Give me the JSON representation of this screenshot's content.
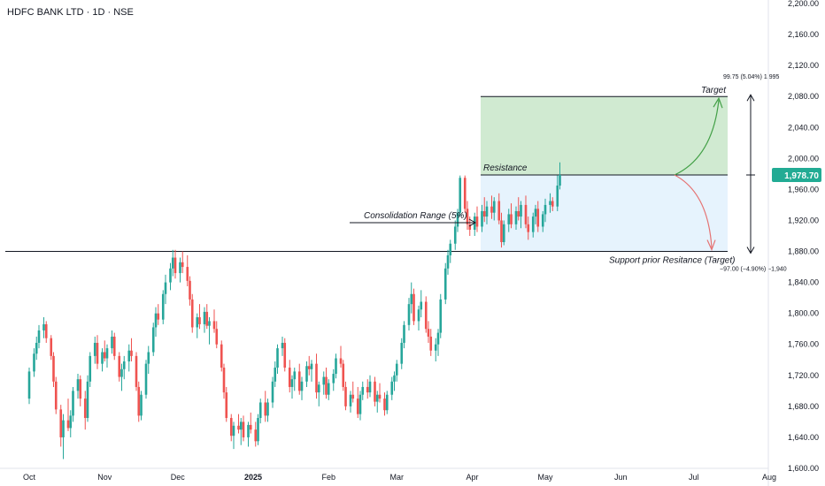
{
  "header": {
    "title": "HDFC BANK LTD · 1D · NSE"
  },
  "colors": {
    "up": "#26a69a",
    "down": "#ef5350",
    "target_zone": "#c8e6c9",
    "range_zone": "#e3f2fd",
    "price_tag_bg": "#22ab94",
    "line": "#131722",
    "axis_text": "#131722",
    "arrow_up": "#43a047",
    "arrow_down": "#e57373"
  },
  "annotations": {
    "target": "Target",
    "resistance": "Resistance",
    "consolidation": "Consolidation Range (5%)",
    "support": "Support prior Resitance (Target)",
    "measure_up": "99.75 (5.04%) 1,995",
    "measure_down": "−97.00 (−4.90%) −1,940"
  },
  "price_tag": "1,978.70",
  "chart_data": {
    "type": "candlestick",
    "title": "HDFC BANK LTD · 1D · NSE",
    "y_ticks": [
      "2,200.00",
      "2,160.00",
      "2,120.00",
      "2,080.00",
      "2,040.00",
      "2,000.00",
      "1,960.00",
      "1,920.00",
      "1,880.00",
      "1,840.00",
      "1,800.00",
      "1,760.00",
      "1,720.00",
      "1,680.00",
      "1,640.00",
      "1,600.00"
    ],
    "ylim": [
      1600,
      2200
    ],
    "x_ticks": [
      {
        "label": "Oct",
        "day": 1
      },
      {
        "label": "Nov",
        "day": 32
      },
      {
        "label": "Dec",
        "day": 62
      },
      {
        "label": "2025",
        "day": 93
      },
      {
        "label": "Feb",
        "day": 124
      },
      {
        "label": "Mar",
        "day": 152
      },
      {
        "label": "Apr",
        "day": 183
      },
      {
        "label": "May",
        "day": 213
      },
      {
        "label": "Jun",
        "day": 244
      },
      {
        "label": "Jul",
        "day": 274
      },
      {
        "label": "Aug",
        "day": 305
      }
    ],
    "levels": {
      "target": 2080,
      "resistance": 1978.7,
      "support": 1880,
      "last_price": 1978.7
    },
    "series": [
      {
        "name": "Price",
        "ohlc": [
          [
            1,
            1690,
            1730,
            1683,
            1725
          ],
          [
            3,
            1725,
            1755,
            1718,
            1748
          ],
          [
            4,
            1748,
            1770,
            1740,
            1762
          ],
          [
            5,
            1762,
            1785,
            1755,
            1778
          ],
          [
            7,
            1778,
            1795,
            1768,
            1786
          ],
          [
            8,
            1786,
            1790,
            1762,
            1768
          ],
          [
            10,
            1768,
            1772,
            1740,
            1745
          ],
          [
            11,
            1745,
            1750,
            1705,
            1712
          ],
          [
            12,
            1712,
            1718,
            1670,
            1676
          ],
          [
            14,
            1676,
            1682,
            1628,
            1640
          ],
          [
            15,
            1640,
            1670,
            1612,
            1662
          ],
          [
            17,
            1662,
            1690,
            1648,
            1652
          ],
          [
            18,
            1652,
            1675,
            1640,
            1668
          ],
          [
            19,
            1668,
            1705,
            1660,
            1700
          ],
          [
            21,
            1700,
            1722,
            1690,
            1715
          ],
          [
            22,
            1715,
            1720,
            1680,
            1690
          ],
          [
            24,
            1690,
            1700,
            1650,
            1665
          ],
          [
            25,
            1665,
            1720,
            1660,
            1712
          ],
          [
            26,
            1712,
            1750,
            1705,
            1745
          ],
          [
            28,
            1745,
            1770,
            1735,
            1762
          ],
          [
            29,
            1762,
            1772,
            1728,
            1735
          ],
          [
            31,
            1735,
            1755,
            1725,
            1750
          ],
          [
            32,
            1750,
            1765,
            1738,
            1742
          ],
          [
            33,
            1742,
            1760,
            1730,
            1755
          ],
          [
            35,
            1755,
            1778,
            1748,
            1770
          ],
          [
            36,
            1770,
            1775,
            1740,
            1745
          ],
          [
            38,
            1745,
            1750,
            1712,
            1718
          ],
          [
            39,
            1718,
            1735,
            1700,
            1728
          ],
          [
            40,
            1728,
            1745,
            1715,
            1738
          ],
          [
            42,
            1738,
            1760,
            1725,
            1752
          ],
          [
            43,
            1752,
            1768,
            1738,
            1745
          ],
          [
            45,
            1745,
            1750,
            1700,
            1705
          ],
          [
            46,
            1705,
            1712,
            1660,
            1668
          ],
          [
            47,
            1668,
            1700,
            1662,
            1695
          ],
          [
            49,
            1695,
            1740,
            1690,
            1735
          ],
          [
            50,
            1735,
            1758,
            1722,
            1750
          ],
          [
            52,
            1750,
            1788,
            1745,
            1782
          ],
          [
            53,
            1782,
            1808,
            1770,
            1800
          ],
          [
            54,
            1800,
            1812,
            1785,
            1792
          ],
          [
            56,
            1792,
            1830,
            1786,
            1825
          ],
          [
            57,
            1825,
            1850,
            1812,
            1840
          ],
          [
            59,
            1840,
            1865,
            1830,
            1858
          ],
          [
            60,
            1858,
            1882,
            1848,
            1872
          ],
          [
            61,
            1872,
            1882,
            1845,
            1852
          ],
          [
            63,
            1852,
            1872,
            1840,
            1866
          ],
          [
            64,
            1866,
            1880,
            1852,
            1860
          ],
          [
            66,
            1860,
            1875,
            1835,
            1842
          ],
          [
            67,
            1842,
            1848,
            1810,
            1818
          ],
          [
            68,
            1818,
            1825,
            1775,
            1782
          ],
          [
            70,
            1782,
            1800,
            1768,
            1795
          ],
          [
            71,
            1795,
            1812,
            1780,
            1786
          ],
          [
            73,
            1786,
            1808,
            1775,
            1802
          ],
          [
            74,
            1802,
            1812,
            1780,
            1784
          ],
          [
            75,
            1784,
            1795,
            1760,
            1790
          ],
          [
            77,
            1790,
            1805,
            1775,
            1780
          ],
          [
            78,
            1780,
            1790,
            1755,
            1760
          ],
          [
            80,
            1760,
            1765,
            1725,
            1730
          ],
          [
            81,
            1730,
            1735,
            1690,
            1698
          ],
          [
            82,
            1698,
            1705,
            1660,
            1665
          ],
          [
            84,
            1665,
            1670,
            1635,
            1642
          ],
          [
            85,
            1642,
            1660,
            1625,
            1655
          ],
          [
            87,
            1655,
            1670,
            1645,
            1650
          ],
          [
            88,
            1650,
            1665,
            1630,
            1660
          ],
          [
            89,
            1660,
            1668,
            1635,
            1640
          ],
          [
            91,
            1640,
            1660,
            1628,
            1656
          ],
          [
            92,
            1656,
            1672,
            1645,
            1650
          ],
          [
            94,
            1650,
            1660,
            1628,
            1635
          ],
          [
            95,
            1635,
            1670,
            1630,
            1665
          ],
          [
            96,
            1665,
            1690,
            1658,
            1685
          ],
          [
            98,
            1685,
            1700,
            1660,
            1668
          ],
          [
            99,
            1668,
            1690,
            1660,
            1685
          ],
          [
            101,
            1685,
            1718,
            1678,
            1712
          ],
          [
            102,
            1712,
            1738,
            1705,
            1730
          ],
          [
            103,
            1730,
            1760,
            1722,
            1755
          ],
          [
            105,
            1755,
            1770,
            1745,
            1762
          ],
          [
            106,
            1762,
            1768,
            1725,
            1730
          ],
          [
            108,
            1730,
            1740,
            1698,
            1705
          ],
          [
            109,
            1705,
            1720,
            1690,
            1715
          ],
          [
            110,
            1715,
            1730,
            1700,
            1725
          ],
          [
            112,
            1725,
            1735,
            1695,
            1700
          ],
          [
            113,
            1700,
            1718,
            1688,
            1712
          ],
          [
            115,
            1712,
            1738,
            1705,
            1732
          ],
          [
            116,
            1732,
            1745,
            1720,
            1728
          ],
          [
            117,
            1728,
            1740,
            1712,
            1735
          ],
          [
            119,
            1735,
            1748,
            1690,
            1698
          ],
          [
            120,
            1698,
            1712,
            1680,
            1708
          ],
          [
            122,
            1708,
            1725,
            1695,
            1718
          ],
          [
            123,
            1718,
            1730,
            1690,
            1695
          ],
          [
            124,
            1695,
            1715,
            1688,
            1710
          ],
          [
            126,
            1710,
            1728,
            1700,
            1722
          ],
          [
            127,
            1722,
            1748,
            1716,
            1742
          ],
          [
            129,
            1742,
            1758,
            1730,
            1735
          ],
          [
            130,
            1735,
            1740,
            1700,
            1705
          ],
          [
            131,
            1705,
            1712,
            1675,
            1680
          ],
          [
            133,
            1680,
            1700,
            1672,
            1695
          ],
          [
            134,
            1695,
            1712,
            1685,
            1690
          ],
          [
            136,
            1690,
            1705,
            1665,
            1670
          ],
          [
            137,
            1670,
            1700,
            1662,
            1695
          ],
          [
            138,
            1695,
            1712,
            1688,
            1705
          ],
          [
            140,
            1705,
            1715,
            1690,
            1698
          ],
          [
            141,
            1698,
            1720,
            1692,
            1712
          ],
          [
            143,
            1712,
            1718,
            1680,
            1686
          ],
          [
            144,
            1686,
            1700,
            1672,
            1695
          ],
          [
            145,
            1695,
            1710,
            1685,
            1690
          ],
          [
            147,
            1690,
            1698,
            1668,
            1675
          ],
          [
            148,
            1675,
            1700,
            1670,
            1695
          ],
          [
            150,
            1695,
            1718,
            1688,
            1712
          ],
          [
            151,
            1712,
            1725,
            1700,
            1720
          ],
          [
            152,
            1720,
            1740,
            1712,
            1735
          ],
          [
            154,
            1735,
            1768,
            1728,
            1762
          ],
          [
            155,
            1762,
            1790,
            1755,
            1785
          ],
          [
            157,
            1785,
            1820,
            1778,
            1812
          ],
          [
            158,
            1812,
            1840,
            1800,
            1825
          ],
          [
            159,
            1825,
            1832,
            1785,
            1790
          ],
          [
            161,
            1790,
            1810,
            1778,
            1805
          ],
          [
            162,
            1805,
            1830,
            1795,
            1815
          ],
          [
            164,
            1815,
            1822,
            1775,
            1780
          ],
          [
            165,
            1780,
            1790,
            1762,
            1770
          ],
          [
            166,
            1770,
            1780,
            1745,
            1752
          ],
          [
            168,
            1752,
            1768,
            1738,
            1760
          ],
          [
            169,
            1760,
            1780,
            1745,
            1775
          ],
          [
            170,
            1775,
            1825,
            1768,
            1818
          ],
          [
            172,
            1818,
            1865,
            1812,
            1858
          ],
          [
            173,
            1858,
            1882,
            1850,
            1875
          ],
          [
            174,
            1875,
            1895,
            1865,
            1890
          ],
          [
            176,
            1890,
            1920,
            1882,
            1912
          ],
          [
            177,
            1912,
            1935,
            1905,
            1930
          ],
          [
            178,
            1930,
            1978,
            1925,
            1975
          ],
          [
            180,
            1975,
            1978,
            1930,
            1935
          ],
          [
            181,
            1935,
            1945,
            1908,
            1915
          ],
          [
            182,
            1915,
            1925,
            1900,
            1908
          ],
          [
            184,
            1908,
            1930,
            1900,
            1925
          ],
          [
            185,
            1925,
            1938,
            1905,
            1912
          ],
          [
            187,
            1912,
            1940,
            1905,
            1932
          ],
          [
            188,
            1932,
            1950,
            1918,
            1925
          ],
          [
            189,
            1925,
            1945,
            1915,
            1938
          ],
          [
            191,
            1938,
            1952,
            1922,
            1930
          ],
          [
            192,
            1930,
            1950,
            1920,
            1945
          ],
          [
            194,
            1945,
            1955,
            1915,
            1920
          ],
          [
            195,
            1920,
            1930,
            1885,
            1892
          ],
          [
            196,
            1892,
            1920,
            1888,
            1915
          ],
          [
            198,
            1915,
            1935,
            1905,
            1928
          ],
          [
            199,
            1928,
            1942,
            1910,
            1915
          ],
          [
            201,
            1915,
            1938,
            1908,
            1932
          ],
          [
            202,
            1932,
            1950,
            1920,
            1925
          ],
          [
            203,
            1925,
            1945,
            1910,
            1940
          ],
          [
            205,
            1940,
            1952,
            1910,
            1915
          ],
          [
            206,
            1915,
            1925,
            1895,
            1905
          ],
          [
            208,
            1905,
            1930,
            1898,
            1925
          ],
          [
            209,
            1925,
            1940,
            1915,
            1935
          ],
          [
            210,
            1935,
            1945,
            1905,
            1912
          ],
          [
            212,
            1912,
            1932,
            1905,
            1928
          ],
          [
            213,
            1928,
            1948,
            1918,
            1940
          ],
          [
            215,
            1940,
            1955,
            1930,
            1945
          ],
          [
            216,
            1945,
            1950,
            1932,
            1938
          ],
          [
            218,
            1938,
            1978,
            1932,
            1965
          ],
          [
            219,
            1965,
            1995,
            1960,
            1978.7
          ]
        ]
      }
    ]
  }
}
